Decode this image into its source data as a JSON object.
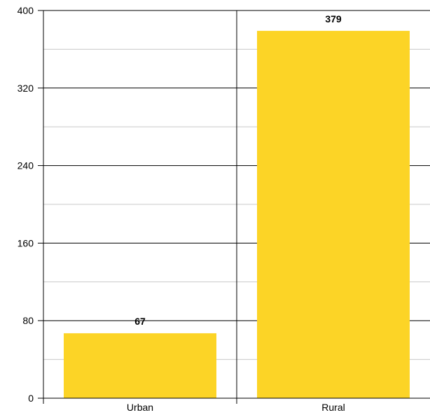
{
  "chart_data": {
    "type": "bar",
    "title": "",
    "xlabel": "",
    "ylabel": "",
    "categories": [
      "Urban",
      "Rural"
    ],
    "values": [
      67,
      379
    ],
    "ylim": [
      0,
      400
    ],
    "yticks": [
      0,
      80,
      160,
      240,
      320,
      400
    ],
    "grid": true,
    "legend": "none",
    "bar_color": "#FCD426",
    "major_grid_color": "#000000",
    "minor_grid_color": "#c8c8c8"
  }
}
